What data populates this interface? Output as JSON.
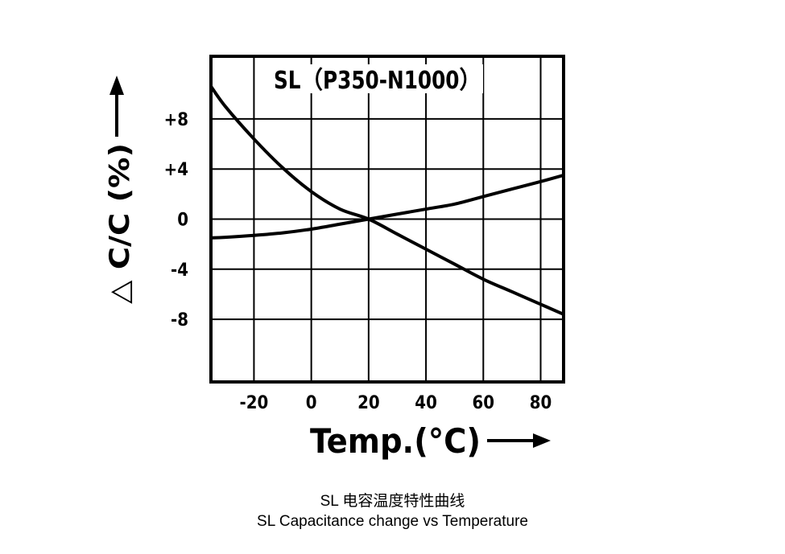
{
  "chart_data": {
    "type": "line",
    "title": "SL（P350-N1000）",
    "xlabel": "Temp.(°C)",
    "ylabel": "△ C/C (%)",
    "xlim": [
      -35,
      88
    ],
    "ylim": [
      -13,
      13
    ],
    "x_ticks": [
      -20,
      0,
      20,
      40,
      60,
      80
    ],
    "x_tick_labels": [
      "-20",
      "0",
      "20",
      "40",
      "60",
      "80"
    ],
    "y_ticks": [
      8,
      4,
      0,
      -4,
      -8
    ],
    "y_tick_labels": [
      "+8",
      "+4",
      "0",
      "-4",
      "-8"
    ],
    "grid": true,
    "series": [
      {
        "x": [
          -35,
          -30,
          -20,
          -10,
          0,
          10,
          20,
          30,
          40,
          50,
          60,
          70,
          80,
          88
        ],
        "values": [
          10.6,
          9.0,
          6.4,
          4.1,
          2.2,
          0.8,
          0.0,
          -1.2,
          -2.4,
          -3.6,
          -4.8,
          -5.8,
          -6.8,
          -7.6
        ]
      },
      {
        "x": [
          -35,
          -30,
          -20,
          -10,
          0,
          10,
          20,
          30,
          40,
          50,
          60,
          70,
          80,
          88
        ],
        "values": [
          -1.5,
          -1.45,
          -1.3,
          -1.1,
          -0.8,
          -0.4,
          0.0,
          0.4,
          0.8,
          1.2,
          1.8,
          2.4,
          3.0,
          3.5
        ]
      }
    ],
    "colors": {
      "line": "#000000",
      "grid": "#000000",
      "frame": "#000000"
    }
  },
  "captions": {
    "cn": "SL 电容温度特性曲线",
    "en": "SL Capacitance change vs Temperature"
  }
}
